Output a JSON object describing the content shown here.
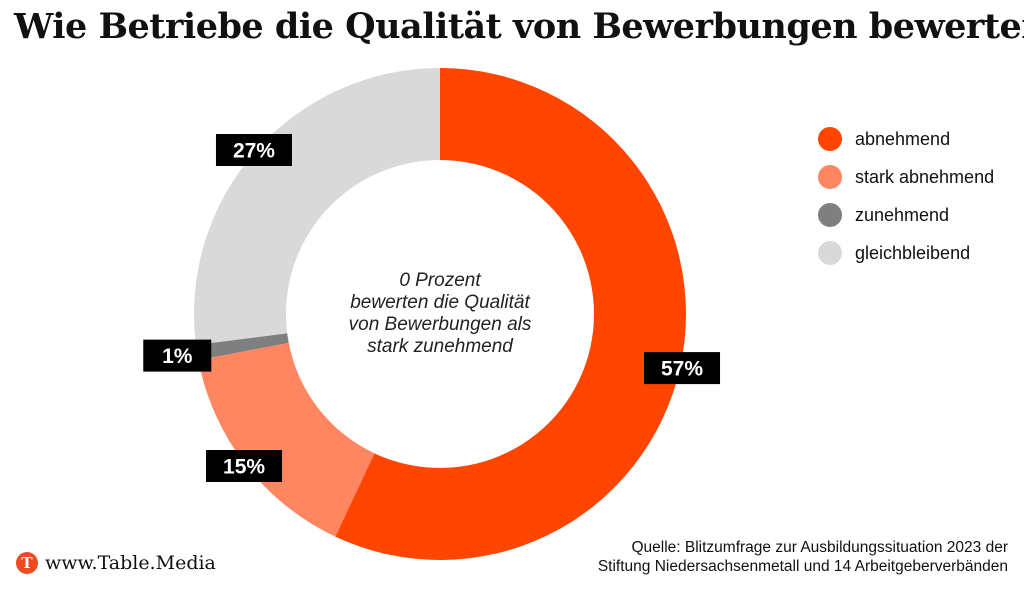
{
  "title": "Wie Betriebe die Qualität von Bewerbungen bewerten",
  "chart_data": {
    "type": "pie",
    "categories": [
      "abnehmend",
      "stark abnehmend",
      "zunehmend",
      "gleichbleibend"
    ],
    "values": [
      57,
      15,
      1,
      27
    ],
    "data_labels": [
      "57%",
      "15%",
      "1%",
      "27%"
    ],
    "colors": [
      "#ff4500",
      "#ff8661",
      "#7f7f7f",
      "#d9d9d9"
    ],
    "legend": "right",
    "center_note": [
      "0 Prozent",
      "bewerten die Qualität",
      "von Bewerbungen als",
      "stark zunehmend"
    ]
  },
  "source": [
    "Quelle:  Blitzumfrage zur Ausbildungssituation 2023 der",
    "Stiftung Niedersachsenmetall und 14 Arbeitgeberverbänden"
  ],
  "brand": {
    "logo_letter": "T",
    "name": "www.Table.Media"
  }
}
